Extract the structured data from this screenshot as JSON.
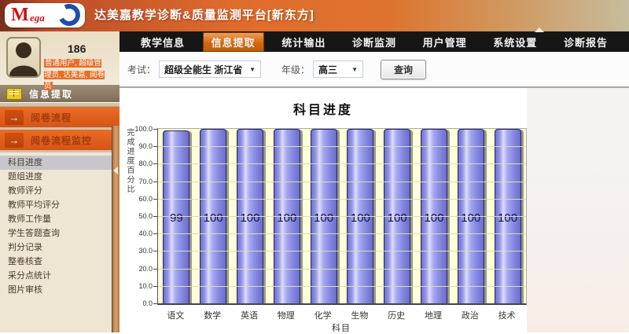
{
  "header": {
    "logo_m": "M",
    "logo_ega": "ega",
    "title": "达美嘉教学诊断&质量监测平台[新东方]"
  },
  "nav": {
    "tabs": [
      {
        "label": "教学信息",
        "active": false
      },
      {
        "label": "信息提取",
        "active": true
      },
      {
        "label": "统计输出",
        "active": false
      },
      {
        "label": "诊断监测",
        "active": false
      },
      {
        "label": "用户管理",
        "active": false
      },
      {
        "label": "系统设置",
        "active": false
      },
      {
        "label": "诊断报告",
        "active": false
      }
    ]
  },
  "user": {
    "id": "186",
    "roles": "普通用户, 超级管理员, 达美嘉, 阅卷员"
  },
  "sidebar": {
    "section_title": "信息提取",
    "quick_links": [
      {
        "label": "阅卷流程"
      },
      {
        "label": "阅卷流程监控"
      }
    ],
    "menu_items": [
      {
        "label": "科目进度",
        "selected": true
      },
      {
        "label": "题组进度",
        "selected": false
      },
      {
        "label": "教师评分",
        "selected": false
      },
      {
        "label": "教师平均评分",
        "selected": false
      },
      {
        "label": "教师工作量",
        "selected": false
      },
      {
        "label": "学生答题查询",
        "selected": false
      },
      {
        "label": "判分记录",
        "selected": false
      },
      {
        "label": "整卷核查",
        "selected": false
      },
      {
        "label": "采分点统计",
        "selected": false
      },
      {
        "label": "图片审核",
        "selected": false
      }
    ]
  },
  "filters": {
    "exam_label": "考试：",
    "exam_value": "超级全能生 浙江省",
    "grade_label": "年级：",
    "grade_value": "高三",
    "dropdown_caret": "▼",
    "query_button": "查询"
  },
  "chart_data": {
    "type": "bar",
    "title": "科目进度",
    "categories": [
      "语文",
      "数学",
      "英语",
      "物理",
      "化学",
      "生物",
      "历史",
      "地理",
      "政治",
      "技术"
    ],
    "values": [
      99,
      100,
      100,
      100,
      100,
      100,
      100,
      100,
      100,
      100
    ],
    "xlabel": "科目",
    "ylabel": "完成进度百分比",
    "ylim": [
      0,
      100
    ],
    "ytick_step": 10,
    "grid": true,
    "legend": "none",
    "bar_color": "#8a8ce8",
    "plot_bg": "#ffffd8",
    "value_label_color": "#14144a"
  }
}
